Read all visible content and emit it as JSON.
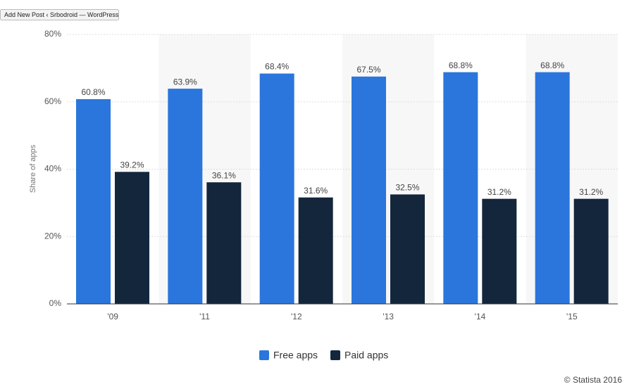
{
  "window_tooltip": "Add New Post ‹ Srbodroid — WordPress",
  "chart_data": {
    "type": "bar",
    "y_label": "Share of apps",
    "categories": [
      "'09",
      "'11",
      "'12",
      "'13",
      "'14",
      "'15"
    ],
    "series": [
      {
        "name": "Free apps",
        "color": "#2a76dc",
        "values": [
          60.8,
          63.9,
          68.4,
          67.5,
          68.8,
          68.8
        ],
        "value_labels": [
          "60.8%",
          "63.9%",
          "68.4%",
          "67.5%",
          "68.8%",
          "68.8%"
        ]
      },
      {
        "name": "Paid apps",
        "color": "#13263c",
        "values": [
          39.2,
          36.1,
          31.6,
          32.5,
          31.2,
          31.2
        ],
        "value_labels": [
          "39.2%",
          "36.1%",
          "31.6%",
          "32.5%",
          "31.2%",
          "31.2%"
        ]
      }
    ],
    "ylim": [
      0,
      80
    ],
    "yticks": [
      {
        "value": 0,
        "label": "0%"
      },
      {
        "value": 20,
        "label": "20%"
      },
      {
        "value": 40,
        "label": "40%"
      },
      {
        "value": 60,
        "label": "60%"
      },
      {
        "value": 80,
        "label": "80%"
      }
    ],
    "grid": true,
    "legend": "bottom",
    "credit": "© Statista 2016"
  }
}
